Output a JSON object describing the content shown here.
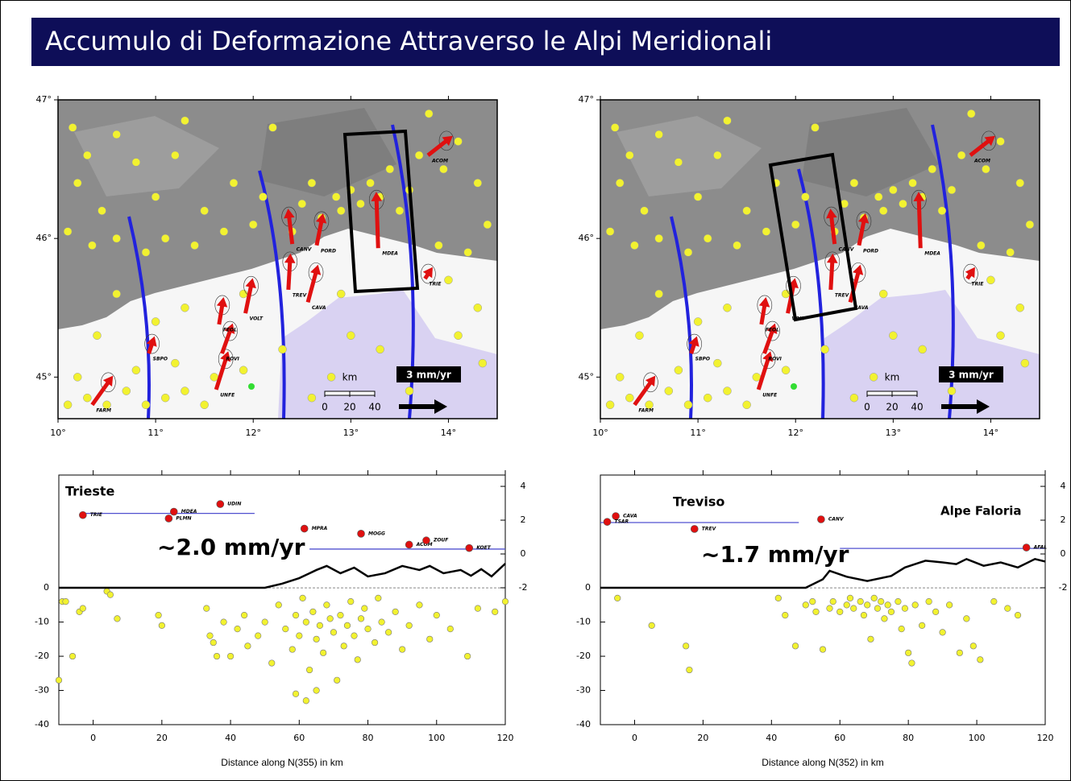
{
  "title": "Accumulo di Deformazione Attraverso le Alpi Meridionali",
  "chart_data": [
    {
      "type": "map",
      "xlim": [
        10,
        14.5
      ],
      "ylim": [
        44.7,
        47
      ],
      "xticks": [
        {
          "value": 10,
          "label": "10°"
        },
        {
          "value": 11,
          "label": "11°"
        },
        {
          "value": 12,
          "label": "12°"
        },
        {
          "value": 13,
          "label": "13°"
        },
        {
          "value": 14,
          "label": "14°"
        }
      ],
      "yticks": [
        {
          "value": 45,
          "label": "45°"
        },
        {
          "value": 46,
          "label": "46°"
        },
        {
          "value": 47,
          "label": "47°"
        }
      ],
      "earthquakes": {
        "color": "#f2f230",
        "x": [
          10.15,
          10.3,
          10.2,
          10.45,
          10.1,
          10.6,
          10.8,
          10.35,
          10.6,
          10.9,
          11.0,
          11.2,
          11.3,
          11.5,
          11.1,
          11.4,
          11.7,
          11.8,
          12.0,
          12.1,
          12.2,
          12.4,
          12.5,
          12.6,
          12.7,
          12.85,
          12.9,
          13.0,
          13.1,
          13.2,
          13.3,
          13.4,
          13.5,
          13.6,
          13.7,
          13.8,
          13.95,
          14.1,
          14.3,
          14.4,
          14.2,
          14.0,
          14.3,
          14.1,
          14.35,
          13.9,
          10.1,
          10.3,
          10.5,
          10.7,
          10.9,
          11.1,
          11.3,
          11.5,
          10.2,
          10.8,
          11.2,
          11.6,
          10.4,
          10.6,
          11.0,
          11.3,
          11.9,
          12.3,
          12.8,
          13.0,
          13.3,
          12.6,
          13.6,
          12.9,
          11.9
        ],
        "y": [
          46.8,
          46.6,
          46.4,
          46.2,
          46.05,
          46.75,
          46.55,
          45.95,
          46.0,
          45.9,
          46.3,
          46.6,
          46.85,
          46.2,
          46.0,
          45.95,
          46.05,
          46.4,
          46.1,
          46.3,
          46.8,
          46.05,
          46.25,
          46.4,
          46.15,
          46.3,
          46.2,
          46.35,
          46.25,
          46.4,
          46.3,
          46.5,
          46.2,
          46.35,
          46.6,
          46.9,
          46.5,
          46.7,
          46.4,
          46.1,
          45.9,
          45.7,
          45.5,
          45.3,
          45.1,
          45.95,
          44.8,
          44.85,
          44.8,
          44.9,
          44.8,
          44.85,
          44.9,
          44.8,
          45.0,
          45.05,
          45.1,
          45.0,
          45.3,
          45.6,
          45.4,
          45.5,
          45.6,
          45.2,
          45.0,
          45.3,
          45.2,
          44.85,
          44.9,
          45.6,
          45.05
        ]
      },
      "stations": {
        "color": "#e01010",
        "names": [
          "FARM",
          "UNFE",
          "ROVI",
          "FEOL",
          "VOLT",
          "CAVA",
          "TREV",
          "CANV",
          "MDEA",
          "PORD",
          "TRIE",
          "SBPO",
          "ACOM"
        ],
        "x": [
          10.35,
          11.62,
          11.68,
          11.65,
          11.92,
          12.56,
          12.36,
          12.4,
          13.28,
          12.65,
          13.76,
          10.93,
          13.79
        ],
        "y": [
          44.8,
          44.91,
          45.17,
          45.38,
          45.46,
          45.54,
          45.63,
          45.96,
          45.93,
          45.95,
          45.71,
          45.17,
          46.6
        ],
        "ve": [
          1.0,
          0.6,
          0.5,
          0.2,
          0.35,
          0.5,
          0.1,
          -0.2,
          -0.1,
          0.3,
          0.2,
          0.2,
          1.15
        ],
        "vn": [
          1.4,
          1.9,
          1.4,
          1.2,
          1.7,
          1.85,
          1.75,
          1.7,
          3.0,
          1.5,
          0.3,
          0.6,
          0.9
        ]
      },
      "scale_label": "km",
      "scale_ticks": [
        0,
        20,
        40
      ],
      "arrow_label": "3 mm/yr",
      "arrow_value": 3
    },
    {
      "type": "map",
      "xlim": [
        10,
        14.5
      ],
      "ylim": [
        44.7,
        47
      ],
      "xticks": [
        {
          "value": 10,
          "label": "10°"
        },
        {
          "value": 11,
          "label": "11°"
        },
        {
          "value": 12,
          "label": "12°"
        },
        {
          "value": 13,
          "label": "13°"
        },
        {
          "value": 14,
          "label": "14°"
        }
      ],
      "yticks": [
        {
          "value": 45,
          "label": "45°"
        },
        {
          "value": 46,
          "label": "46°"
        },
        {
          "value": 47,
          "label": "47°"
        }
      ],
      "scale_label": "km",
      "scale_ticks": [
        0,
        20,
        40
      ],
      "arrow_label": "3 mm/yr",
      "arrow_value": 3
    },
    {
      "type": "profile",
      "xlabel": "Distance along N(355) in km",
      "xlim": [
        -10,
        120
      ],
      "ylim": [
        -40,
        33
      ],
      "y2lim": [
        -10.1,
        4.67
      ],
      "xticks": [
        0,
        20,
        40,
        60,
        80,
        100,
        120
      ],
      "yticks": [
        0,
        -10,
        -20,
        -30,
        -40
      ],
      "y2ticks": [
        4,
        2,
        0,
        -2
      ],
      "annotations": [
        "Trieste",
        "~2.0 mm/yr"
      ],
      "earthquakes": {
        "color": "#f2f230",
        "x": [
          -10,
          -9,
          -8,
          -6,
          -4,
          -3,
          4,
          5,
          7,
          19,
          20,
          33,
          34,
          35,
          36,
          38,
          40,
          42,
          44,
          45,
          48,
          50,
          52,
          54,
          56,
          58,
          59,
          60,
          61,
          62,
          63,
          64,
          65,
          66,
          67,
          68,
          69,
          70,
          71,
          72,
          73,
          74,
          75,
          76,
          77,
          78,
          79,
          80,
          82,
          83,
          84,
          86,
          88,
          90,
          92,
          95,
          98,
          100,
          104,
          109,
          112,
          117,
          120,
          62,
          65,
          59
        ],
        "y": [
          -27,
          -4,
          -4,
          -20,
          -7,
          -6,
          -1,
          -2,
          -9,
          -8,
          -11,
          -6,
          -14,
          -16,
          -20,
          -10,
          -20,
          -12,
          -8,
          -17,
          -14,
          -10,
          -22,
          -5,
          -12,
          -18,
          -8,
          -14,
          -3,
          -10,
          -24,
          -7,
          -15,
          -11,
          -19,
          -5,
          -9,
          -13,
          -27,
          -8,
          -17,
          -11,
          -4,
          -14,
          -21,
          -9,
          -6,
          -12,
          -16,
          -3,
          -10,
          -13,
          -7,
          -18,
          -11,
          -5,
          -15,
          -8,
          -12,
          -20,
          -6,
          -7,
          -4,
          -33,
          -30,
          -31
        ]
      },
      "stations": {
        "axis": "y2",
        "color": "#e01010",
        "names": [
          "TRIE",
          "PLMN",
          "MDEA",
          "UDIN",
          "MPRA",
          "MOGG",
          "ACOM",
          "ZOUF",
          "KOET"
        ],
        "x": [
          -3,
          22,
          23.5,
          37,
          61.5,
          78,
          92,
          97,
          109.5
        ],
        "values": [
          2.3,
          2.1,
          2.5,
          2.95,
          1.5,
          1.2,
          0.55,
          0.8,
          0.35
        ]
      },
      "velocity_lines": [
        {
          "axis": "y2",
          "color": "#5050d0",
          "x": [
            -3,
            47
          ],
          "values": [
            2.4,
            2.4
          ]
        },
        {
          "axis": "y2",
          "color": "#5050d0",
          "x": [
            63,
            120
          ],
          "values": [
            0.29,
            0.29
          ]
        }
      ],
      "topography": {
        "axis": "y2",
        "color": "#000000",
        "x": [
          -10,
          50,
          55,
          60,
          65,
          68,
          72,
          76,
          80,
          85,
          90,
          95,
          98,
          102,
          107,
          110,
          113,
          116,
          120
        ],
        "values": [
          -2,
          -2,
          -1.76,
          -1.43,
          -0.95,
          -0.71,
          -1.14,
          -0.81,
          -1.33,
          -1.14,
          -0.71,
          -0.95,
          -0.71,
          -1.14,
          -0.95,
          -1.29,
          -0.9,
          -1.33,
          -0.57
        ]
      }
    },
    {
      "type": "profile",
      "xlabel": "Distance along N(352) in km",
      "xlim": [
        -10,
        120
      ],
      "ylim": [
        -40,
        33
      ],
      "y2lim": [
        -10.1,
        4.67
      ],
      "xticks": [
        0,
        20,
        40,
        60,
        80,
        100,
        120
      ],
      "yticks": [
        0,
        -10,
        -20,
        -30,
        -40
      ],
      "y2ticks": [
        4,
        2,
        0,
        -2
      ],
      "annotations": [
        "Treviso",
        "Alpe Faloria",
        "~1.7 mm/yr"
      ],
      "earthquakes": {
        "color": "#f2f230",
        "x": [
          -5,
          5,
          15,
          16,
          42,
          44,
          47,
          50,
          52,
          53,
          55,
          57,
          58,
          60,
          62,
          63,
          64,
          66,
          67,
          68,
          69,
          70,
          71,
          72,
          73,
          74,
          75,
          77,
          78,
          79,
          80,
          81,
          82,
          84,
          86,
          88,
          90,
          92,
          95,
          97,
          99,
          101,
          105,
          109,
          112
        ],
        "y": [
          -3,
          -11,
          -17,
          -24,
          -3,
          -8,
          -17,
          -5,
          -4,
          -7,
          -18,
          -6,
          -4,
          -7,
          -5,
          -3,
          -6,
          -4,
          -8,
          -5,
          -15,
          -3,
          -6,
          -4,
          -9,
          -5,
          -7,
          -4,
          -12,
          -6,
          -19,
          -22,
          -5,
          -11,
          -4,
          -7,
          -13,
          -5,
          -19,
          -9,
          -17,
          -21,
          -4,
          -6,
          -8
        ]
      },
      "stations": {
        "axis": "y2",
        "color": "#e01010",
        "names": [
          "CAVA",
          "TSAR",
          "TREV",
          "CANV",
          "AFAL"
        ],
        "x": [
          -5.5,
          -8,
          17.5,
          54.5,
          114.5
        ],
        "values": [
          2.24,
          1.9,
          1.48,
          2.05,
          0.38
        ]
      },
      "velocity_lines": [
        {
          "axis": "y2",
          "color": "#5050d0",
          "x": [
            -10,
            48
          ],
          "values": [
            1.86,
            1.86
          ]
        },
        {
          "axis": "y2",
          "color": "#5050d0",
          "x": [
            60,
            120
          ],
          "values": [
            0.33,
            0.33
          ]
        }
      ],
      "topography": {
        "axis": "y2",
        "color": "#000000",
        "x": [
          -10,
          50,
          55,
          57,
          62,
          68,
          75,
          79,
          85,
          90,
          94,
          97,
          102,
          107,
          112,
          117,
          120
        ],
        "values": [
          -2,
          -2,
          -1.5,
          -1.0,
          -1.35,
          -1.6,
          -1.3,
          -0.8,
          -0.4,
          -0.5,
          -0.6,
          -0.3,
          -0.7,
          -0.5,
          -0.8,
          -0.3,
          -0.45
        ]
      }
    }
  ]
}
